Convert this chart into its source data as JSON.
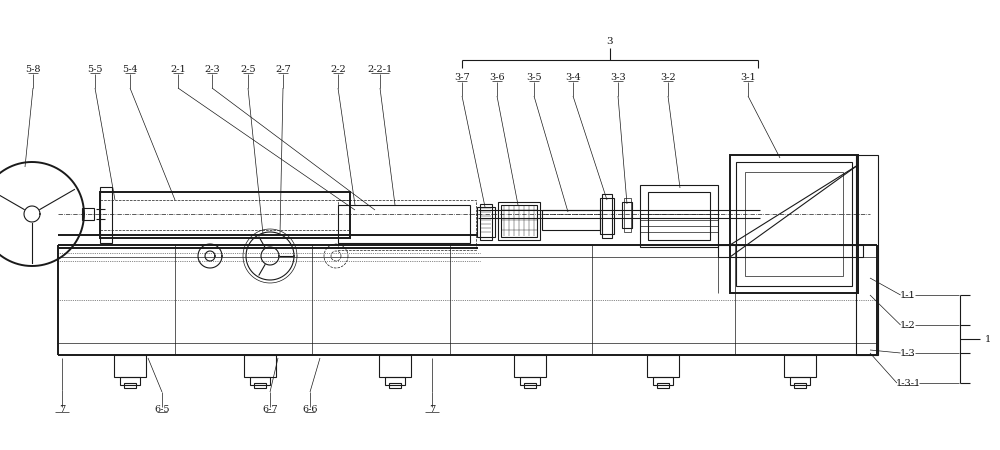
{
  "bg_color": "#ffffff",
  "line_color": "#1a1a1a",
  "lw": 0.8,
  "lw_thick": 1.4,
  "lw_thin": 0.5,
  "fs": 7.0,
  "fig_w": 10.0,
  "fig_h": 4.5
}
